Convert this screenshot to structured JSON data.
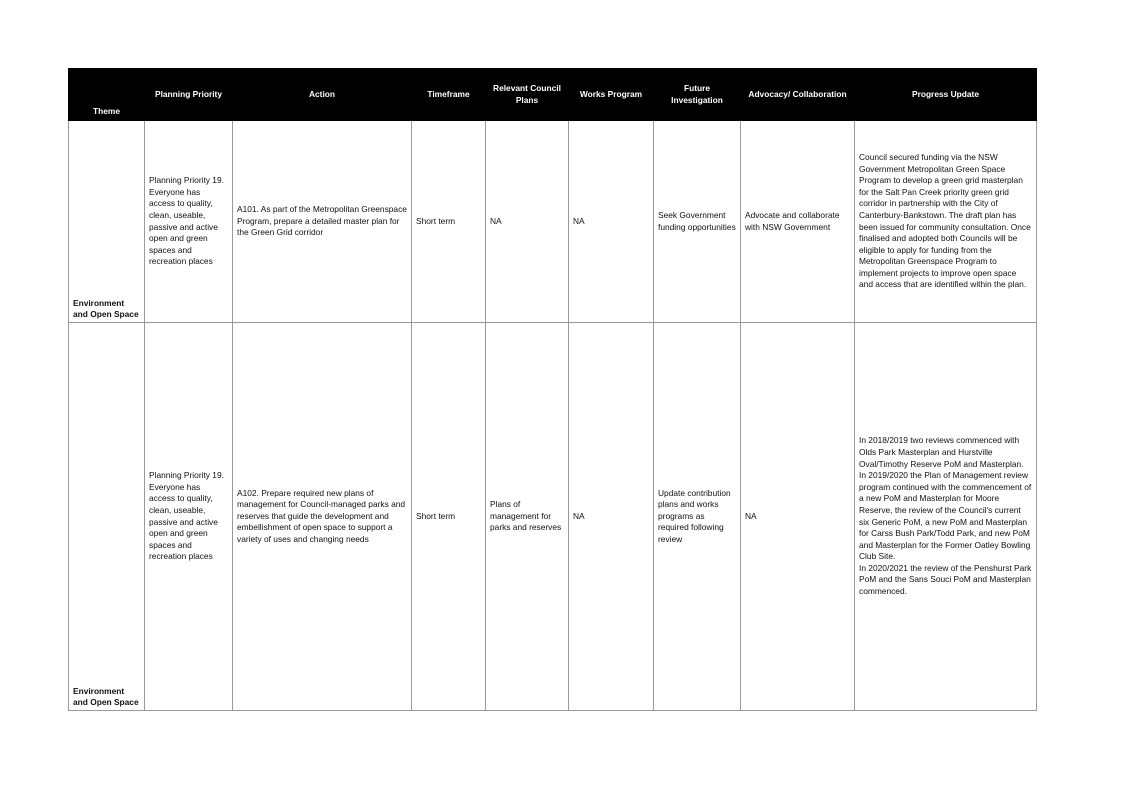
{
  "table": {
    "headers": {
      "theme": "Theme",
      "planning_priority": "Planning Priority",
      "action": "Action",
      "timeframe": "Timeframe",
      "relevant_council_plans": "Relevant Council Plans",
      "works_program": "Works Program",
      "future_investigation": "Future Investigation",
      "advocacy_collaboration": "Advocacy/ Collaboration",
      "progress_update": "Progress Update"
    },
    "rows": [
      {
        "theme": "Environment and Open Space",
        "planning_priority": "Planning Priority 19. Everyone has access to quality, clean, useable, passive and active open and green spaces and recreation places",
        "action": "A101. As part of the Metropolitan Greenspace Program, prepare a detailed master plan for the Green Grid corridor",
        "timeframe": "Short term",
        "relevant_council_plans": "NA",
        "works_program": "NA",
        "future_investigation": "Seek Government funding opportunities",
        "advocacy_collaboration": "Advocate and collaborate with NSW Government",
        "progress_update": [
          "Council secured funding via the NSW Government Metropolitan Green Space Program to develop a green grid masterplan for the Salt Pan Creek priority green grid corridor in partnership with the City of Canterbury-Bankstown. The draft plan has been issued for community consultation. Once finalised and adopted both Councils will be eligible to apply for funding from the Metropolitan Greenspace Program to implement projects to improve open space and access that are identified within the plan."
        ]
      },
      {
        "theme": "Environment and Open Space",
        "planning_priority": "Planning Priority 19. Everyone has access to quality, clean, useable, passive and active open and green spaces and recreation places",
        "action": "A102. Prepare required new plans of management for Council-managed parks and reserves that guide the development and embellishment of open space to support a variety of uses and changing needs",
        "timeframe": "Short term",
        "relevant_council_plans": "Plans of management for parks and reserves",
        "works_program": "NA",
        "future_investigation": "Update contribution plans and works programs as required following review",
        "advocacy_collaboration": "NA",
        "progress_update": [
          "In 2018/2019 two reviews commenced with Olds Park Masterplan and Hurstville Oval/Timothy Reserve PoM and Masterplan.",
          "In 2019/2020 the Plan of Management review program continued with the commencement of a new PoM and Masterplan for Moore Reserve, the review of the Council's current six Generic PoM, a new PoM and Masterplan for Carss Bush Park/Todd Park, and new PoM and Masterplan for the Former Oatley Bowling Club Site.",
          "In 2020/2021 the review of the Penshurst Park PoM and the Sans Souci PoM and Masterplan commenced."
        ]
      }
    ]
  }
}
